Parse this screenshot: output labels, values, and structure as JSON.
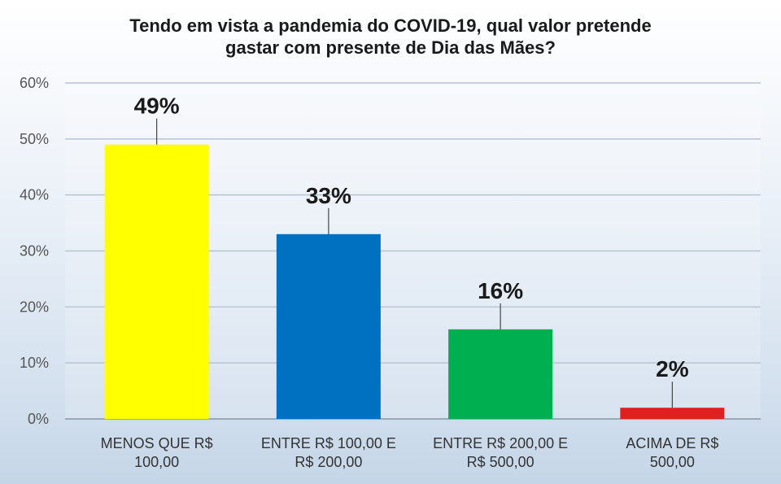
{
  "chart_data": {
    "type": "bar",
    "title_lines": [
      "Tendo em vista a pandemia do COVID-19, qual  valor pretende",
      "gastar com presente de Dia das Mães?"
    ],
    "categories": [
      [
        "MENOS  QUE R$",
        "100,00"
      ],
      [
        "ENTRE  R$ 100,00 E",
        "R$ 200,00"
      ],
      [
        "ENTRE  R$ 200,00 E",
        "R$ 500,00"
      ],
      [
        "ACIMA  DE  R$",
        "500,00"
      ]
    ],
    "values": [
      49,
      33,
      16,
      2
    ],
    "data_labels": [
      "49%",
      "33%",
      "16%",
      "2%"
    ],
    "bar_colors": [
      "#ffff00",
      "#0070c0",
      "#00b050",
      "#e02020"
    ],
    "y_ticks": [
      "0%",
      "10%",
      "20%",
      "30%",
      "40%",
      "50%",
      "60%"
    ],
    "ylim": [
      0,
      60
    ],
    "grid": true,
    "legend": "none"
  }
}
